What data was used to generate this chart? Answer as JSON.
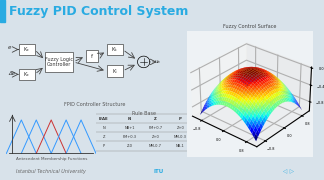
{
  "title": "Fuzzy PID Control System",
  "title_color": "#29ABE2",
  "slide_bg": "#D8E2EA",
  "content_bg": "#EEF2F5",
  "footer_text": "Istanbul Technical University",
  "fuzzy_surface_label": "Fuzzy Control Surface",
  "membership_label": "Antecedent Membership Functions",
  "controller_label": "FPID Controller Structure",
  "rule_base_label": "Rule Base",
  "accent_color": "#29ABE2"
}
